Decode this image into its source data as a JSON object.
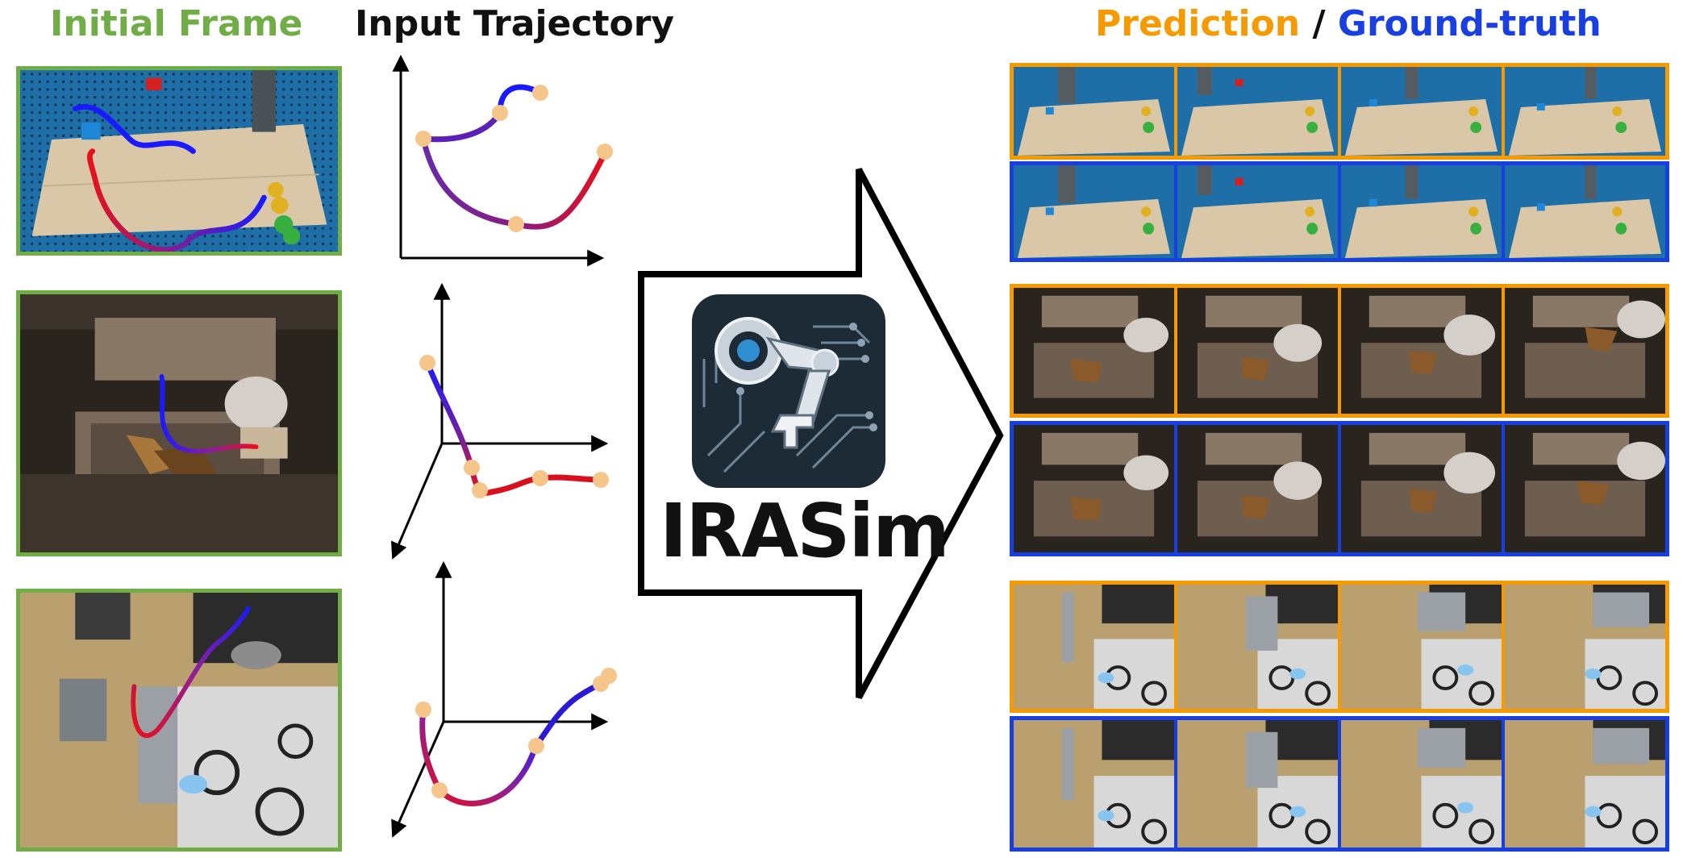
{
  "titles": {
    "initial_frame": "Initial Frame",
    "input_trajectory": "Input Trajectory",
    "prediction": "Prediction",
    "separator": " / ",
    "ground_truth": "Ground-truth"
  },
  "logo": {
    "text": "IRASim",
    "icon": "robot-arm-circuit-icon"
  },
  "colors": {
    "initial_frame": "#70ad47",
    "prediction": "#f59a00",
    "ground_truth": "#1a3fe0",
    "trajectory_start": "#1a1aff",
    "trajectory_end": "#e8101a",
    "waypoint": "#f5c58a"
  },
  "rows": [
    {
      "scene": "tabletop-blocks",
      "plot": "2d",
      "prediction_frames": 4,
      "ground_truth_frames": 4
    },
    {
      "scene": "drawer-food",
      "plot": "3d",
      "prediction_frames": 4,
      "ground_truth_frames": 4
    },
    {
      "scene": "kitchen-microwave",
      "plot": "3d",
      "prediction_frames": 4,
      "ground_truth_frames": 4
    }
  ]
}
